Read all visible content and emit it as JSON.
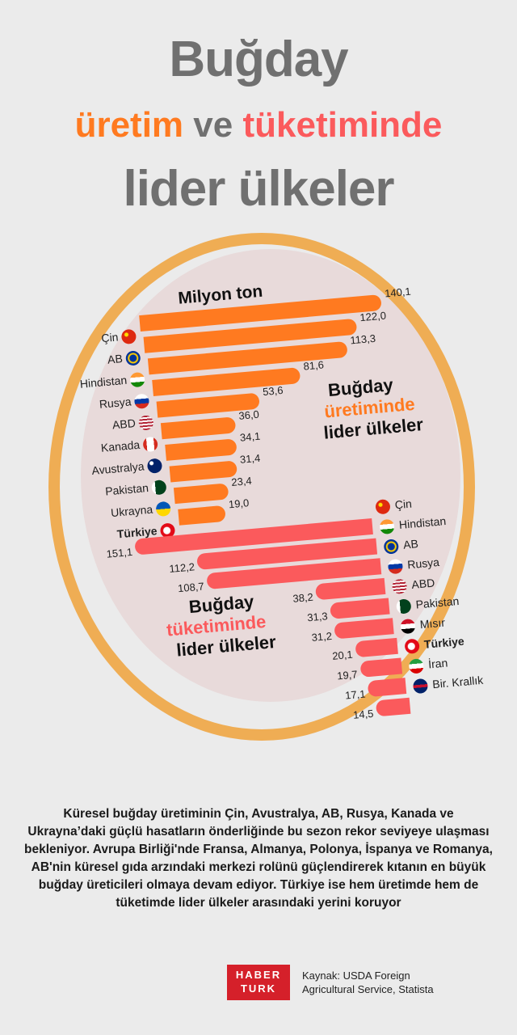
{
  "header": {
    "line1": "Buğday",
    "line2_a": "üretim",
    "line2_b": "ve",
    "line2_c": "tüketiminde",
    "line3": "lider ülkeler"
  },
  "production": {
    "unit_label": "Milyon ton",
    "heading_1": "Buğday",
    "heading_2": "üretiminde",
    "heading_3": "lider ülkeler",
    "items": [
      {
        "country": "Çin",
        "value": "140,1",
        "flag": "china-flag-icon"
      },
      {
        "country": "AB",
        "value": "122,0",
        "flag": "eu-flag-icon"
      },
      {
        "country": "Hindistan",
        "value": "113,3",
        "flag": "india-flag-icon"
      },
      {
        "country": "Rusya",
        "value": "81,6",
        "flag": "russia-flag-icon"
      },
      {
        "country": "ABD",
        "value": "53,6",
        "flag": "usa-flag-icon"
      },
      {
        "country": "Kanada",
        "value": "36,0",
        "flag": "canada-flag-icon"
      },
      {
        "country": "Avustralya",
        "value": "34,1",
        "flag": "australia-flag-icon"
      },
      {
        "country": "Pakistan",
        "value": "31,4",
        "flag": "pakistan-flag-icon"
      },
      {
        "country": "Ukrayna",
        "value": "23,4",
        "flag": "ukraine-flag-icon"
      },
      {
        "country": "Türkiye",
        "value": "19,0",
        "flag": "turkey-flag-icon"
      }
    ]
  },
  "consumption": {
    "heading_1": "Buğday",
    "heading_2": "tüketiminde",
    "heading_3": "lider ülkeler",
    "items": [
      {
        "country": "Çin",
        "value": "151,1",
        "flag": "china-flag-icon"
      },
      {
        "country": "Hindistan",
        "value": "112,2",
        "flag": "india-flag-icon"
      },
      {
        "country": "AB",
        "value": "108,7",
        "flag": "eu-flag-icon"
      },
      {
        "country": "Rusya",
        "value": "38,2",
        "flag": "russia-flag-icon"
      },
      {
        "country": "ABD",
        "value": "31,3",
        "flag": "usa-flag-icon"
      },
      {
        "country": "Pakistan",
        "value": "31,2",
        "flag": "pakistan-flag-icon"
      },
      {
        "country": "Mısır",
        "value": "20,1",
        "flag": "egypt-flag-icon"
      },
      {
        "country": "Türkiye",
        "value": "19,7",
        "flag": "turkey-flag-icon"
      },
      {
        "country": "İran",
        "value": "17,1",
        "flag": "iran-flag-icon"
      },
      {
        "country": "Bir. Krallık",
        "value": "14,5",
        "flag": "uk-flag-icon"
      }
    ]
  },
  "description": "Küresel buğday üretiminin Çin, Avustralya, AB, Rusya, Kanada ve Ukrayna’daki güçlü hasatların önderliğinde bu sezon rekor seviyeye ulaşması bekleniyor. Avrupa Birliği'nde Fransa, Almanya, Polonya, İspanya ve Romanya, AB'nin küresel gıda arzındaki merkezi rolünü güçlendirerek kıtanın en büyük buğday üreticileri olmaya devam ediyor. Türkiye ise hem üretimde hem de tüketimde lider ülkeler arasındaki yerini koruyor",
  "footer": {
    "logo_line1": "HABER",
    "logo_line2": "TURK",
    "source_line1": "Kaynak: USDA Foreign",
    "source_line2": "Agricultural Service, Statista"
  },
  "colors": {
    "production": "#ff7a20",
    "consumption": "#fb5a5c",
    "title_gray": "#707070",
    "background": "#ebebeb",
    "logo_red": "#d5202a"
  },
  "chart_data": [
    {
      "type": "bar",
      "title": "Buğday üretiminde lider ülkeler",
      "ylabel": "Milyon ton",
      "categories": [
        "Çin",
        "AB",
        "Hindistan",
        "Rusya",
        "ABD",
        "Kanada",
        "Avustralya",
        "Pakistan",
        "Ukrayna",
        "Türkiye"
      ],
      "values": [
        140.1,
        122.0,
        113.3,
        81.6,
        53.6,
        36.0,
        34.1,
        31.4,
        23.4,
        19.0
      ],
      "orientation": "horizontal",
      "color": "#ff7a20"
    },
    {
      "type": "bar",
      "title": "Buğday tüketiminde lider ülkeler",
      "ylabel": "Milyon ton",
      "categories": [
        "Çin",
        "Hindistan",
        "AB",
        "Rusya",
        "ABD",
        "Pakistan",
        "Mısır",
        "Türkiye",
        "İran",
        "Bir. Krallık"
      ],
      "values": [
        151.1,
        112.2,
        108.7,
        38.2,
        31.3,
        31.2,
        20.1,
        19.7,
        17.1,
        14.5
      ],
      "orientation": "horizontal",
      "color": "#fb5a5c"
    }
  ]
}
